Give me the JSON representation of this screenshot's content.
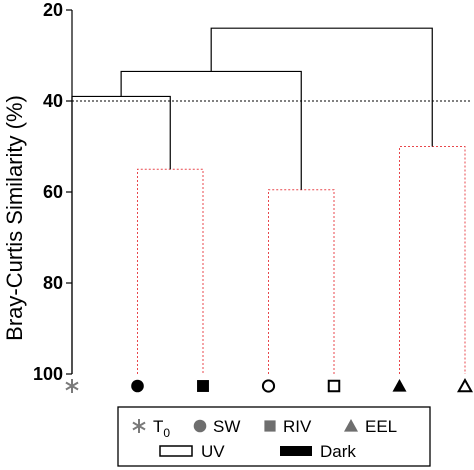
{
  "chart_data": {
    "type": "dendrogram",
    "ylabel": "Bray-Curtis Similarity (%)",
    "ylim": [
      20,
      100
    ],
    "y_ticks": [
      "20",
      "40",
      "60",
      "80",
      "100"
    ],
    "reference_line_y": 40,
    "leaves": [
      {
        "key": "t0",
        "marker": "asterisk"
      },
      {
        "key": "sw_uv",
        "marker": "circle-filled"
      },
      {
        "key": "riv_uv",
        "marker": "square-filled"
      },
      {
        "key": "sw_dark",
        "marker": "circle-open"
      },
      {
        "key": "riv_dark",
        "marker": "square-open"
      },
      {
        "key": "eel_uv",
        "marker": "triangle-filled"
      },
      {
        "key": "eel_dark",
        "marker": "triangle-open"
      }
    ],
    "merges": [
      {
        "left": 1,
        "right": 2,
        "similarity": 55,
        "color": "#e8474c",
        "dashed": true
      },
      {
        "left": 3,
        "right": 4,
        "similarity": 59.5,
        "color": "#e8474c",
        "dashed": true
      },
      {
        "left": 5,
        "right": 6,
        "similarity": 50,
        "color": "#e8474c",
        "dashed": true
      },
      {
        "left": 0,
        "right": 7,
        "similarity": 39,
        "color": "#000000",
        "dashed": false
      },
      {
        "left": 10,
        "right": 8,
        "similarity": 33.5,
        "color": "#000000",
        "dashed": false
      },
      {
        "left": 11,
        "right": 9,
        "similarity": 24,
        "color": "#000000",
        "dashed": false
      }
    ]
  },
  "legend": {
    "items": [
      {
        "marker": "asterisk",
        "label": "T",
        "sub": "0"
      },
      {
        "marker": "circle-filled-gray",
        "label": "SW"
      },
      {
        "marker": "square-filled-gray",
        "label": "RIV"
      },
      {
        "marker": "triangle-filled-gray",
        "label": "EEL"
      },
      {
        "marker": "rect-open",
        "label": "UV"
      },
      {
        "marker": "rect-filled",
        "label": "Dark"
      }
    ]
  }
}
